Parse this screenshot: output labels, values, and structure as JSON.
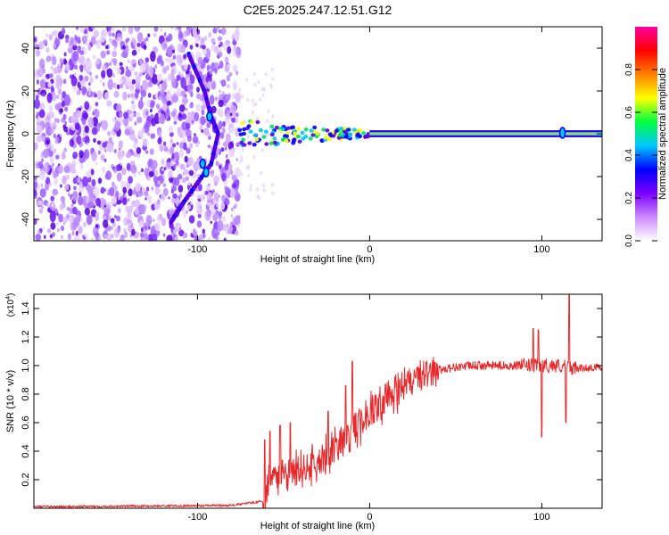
{
  "title": "C2E5.2025.247.12.51.G12",
  "chart_data": [
    {
      "type": "heatmap",
      "id": "spectrogram",
      "xlabel": "Height of straight line (km)",
      "ylabel": "Frequency (Hz)",
      "xlim": [
        -195,
        135
      ],
      "ylim": [
        -50,
        50
      ],
      "x_ticks": [
        -100,
        0,
        100
      ],
      "y_ticks": [
        -40,
        -20,
        0,
        20,
        40
      ],
      "colorbar": {
        "label": "Normalized spectral amplitude",
        "range": [
          0,
          1
        ],
        "ticks": [
          0.0,
          0.2,
          0.4,
          0.6,
          0.8
        ],
        "tick_labels": [
          "0.0",
          "0.2",
          "0.4",
          "0.6",
          "0.8"
        ],
        "stops": [
          "#ffffff",
          "#cc88ff",
          "#7a00ff",
          "#0000ff",
          "#00c8ff",
          "#00ff40",
          "#ffff00",
          "#ff8000",
          "#ff0000",
          "#ff00a0"
        ]
      },
      "features": {
        "noise_region_x": [
          -195,
          -76
        ],
        "transition_x": [
          -76,
          0
        ],
        "tone_x": [
          0,
          135
        ],
        "tone_frequency": 0,
        "chirp_points": [
          [
            -105,
            37
          ],
          [
            -96,
            20
          ],
          [
            -92,
            8
          ],
          [
            -88,
            0
          ],
          [
            -92,
            -14
          ],
          [
            -108,
            -32
          ],
          [
            -116,
            -42
          ]
        ]
      }
    },
    {
      "type": "line",
      "id": "snr",
      "xlabel": "Height of straight line (km)",
      "ylabel": "SNR (10 * v/v)",
      "multiplier_label": "(x10",
      "multiplier_exp": "4",
      "xlim": [
        -195,
        135
      ],
      "ylim": [
        0,
        1.5
      ],
      "x_ticks": [
        -100,
        0,
        100
      ],
      "y_ticks": [
        0.2,
        0.4,
        0.6,
        0.8,
        1.0,
        1.2,
        1.4
      ],
      "y_tick_labels": [
        "0.2",
        "0.4",
        "0.6",
        "0.8",
        "1.0",
        "1.2",
        "1.4"
      ],
      "color": "#e8282a",
      "series": [
        {
          "name": "SNR",
          "envelope": {
            "x": [
              -195,
              -80,
              -62,
              -58,
              -50,
              -40,
              -30,
              -20,
              -10,
              0,
              10,
              20,
              30,
              40,
              50,
              60,
              70,
              80,
              90,
              100,
              110,
              120,
              135
            ],
            "y": [
              0.01,
              0.02,
              0.05,
              0.2,
              0.22,
              0.26,
              0.33,
              0.43,
              0.55,
              0.66,
              0.78,
              0.87,
              0.93,
              0.97,
              0.99,
              1.0,
              1.0,
              1.0,
              1.0,
              1.0,
              1.0,
              0.98,
              0.99
            ]
          },
          "peaks": [
            {
              "x": -61,
              "y": 0.48
            },
            {
              "x": -58,
              "y": 0.54
            },
            {
              "x": -52,
              "y": 0.58
            },
            {
              "x": -46,
              "y": 0.6
            },
            {
              "x": -24,
              "y": 0.68
            },
            {
              "x": -10,
              "y": 1.03
            },
            {
              "x": -14,
              "y": 0.86
            },
            {
              "x": 95,
              "y": 1.26
            },
            {
              "x": 98,
              "y": 1.25
            },
            {
              "x": 100,
              "y": 0.5
            },
            {
              "x": 116,
              "y": 1.5
            },
            {
              "x": 114,
              "y": 0.6
            }
          ]
        }
      ]
    }
  ]
}
